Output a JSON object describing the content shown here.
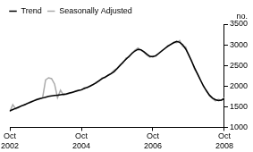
{
  "chart_data": {
    "type": "line",
    "ylabel": "no.",
    "categories": [
      "Oct 2002",
      null,
      null,
      null,
      null,
      null,
      null,
      null,
      null,
      null,
      null,
      null,
      null,
      null,
      null,
      null,
      null,
      null,
      null,
      null,
      null,
      null,
      null,
      null,
      "Oct 2004",
      null,
      null,
      null,
      null,
      null,
      null,
      null,
      null,
      null,
      null,
      null,
      null,
      null,
      null,
      null,
      null,
      null,
      null,
      null,
      null,
      null,
      null,
      null,
      "Oct 2006",
      null,
      null,
      null,
      null,
      null,
      null,
      null,
      null,
      null,
      null,
      null,
      null,
      null,
      null,
      null,
      null,
      null,
      null,
      null,
      null,
      null,
      null,
      null,
      "Oct 2008"
    ],
    "series": [
      {
        "name": "Trend",
        "color": "#000000",
        "values": [
          1400,
          1430,
          1460,
          1490,
          1520,
          1550,
          1580,
          1610,
          1640,
          1670,
          1690,
          1710,
          1730,
          1750,
          1760,
          1770,
          1780,
          1790,
          1800,
          1810,
          1830,
          1850,
          1870,
          1890,
          1910,
          1940,
          1970,
          2000,
          2040,
          2080,
          2130,
          2180,
          2220,
          2260,
          2300,
          2350,
          2420,
          2500,
          2580,
          2650,
          2720,
          2790,
          2850,
          2890,
          2880,
          2830,
          2770,
          2720,
          2710,
          2740,
          2790,
          2850,
          2910,
          2960,
          3010,
          3050,
          3080,
          3060,
          3000,
          2900,
          2760,
          2600,
          2440,
          2290,
          2140,
          2000,
          1880,
          1780,
          1710,
          1670,
          1650,
          1660,
          1700
        ]
      },
      {
        "name": "Seasonally Adjusted",
        "color": "#aaaaaa",
        "values": [
          1380,
          1550,
          1440,
          1480,
          1530,
          1540,
          1590,
          1620,
          1650,
          1680,
          1700,
          1720,
          2150,
          2200,
          2180,
          2050,
          1720,
          1900,
          1780,
          1800,
          1820,
          1840,
          1880,
          1900,
          1900,
          1960,
          1950,
          2010,
          2030,
          2100,
          2120,
          2200,
          2200,
          2270,
          2310,
          2380,
          2430,
          2520,
          2560,
          2680,
          2700,
          2800,
          2870,
          2920,
          2870,
          2820,
          2750,
          2700,
          2730,
          2720,
          2800,
          2860,
          2900,
          2980,
          3000,
          3060,
          3050,
          3100,
          2960,
          2950,
          2750,
          2620,
          2400,
          2300,
          2150,
          1980,
          1900,
          1760,
          1700,
          1640,
          1680,
          1650,
          1720
        ]
      }
    ],
    "ylim": [
      1000,
      3500
    ],
    "yticks": [
      1000,
      1500,
      2000,
      2500,
      3000,
      3500
    ],
    "grid": false,
    "legend": "upper left"
  }
}
